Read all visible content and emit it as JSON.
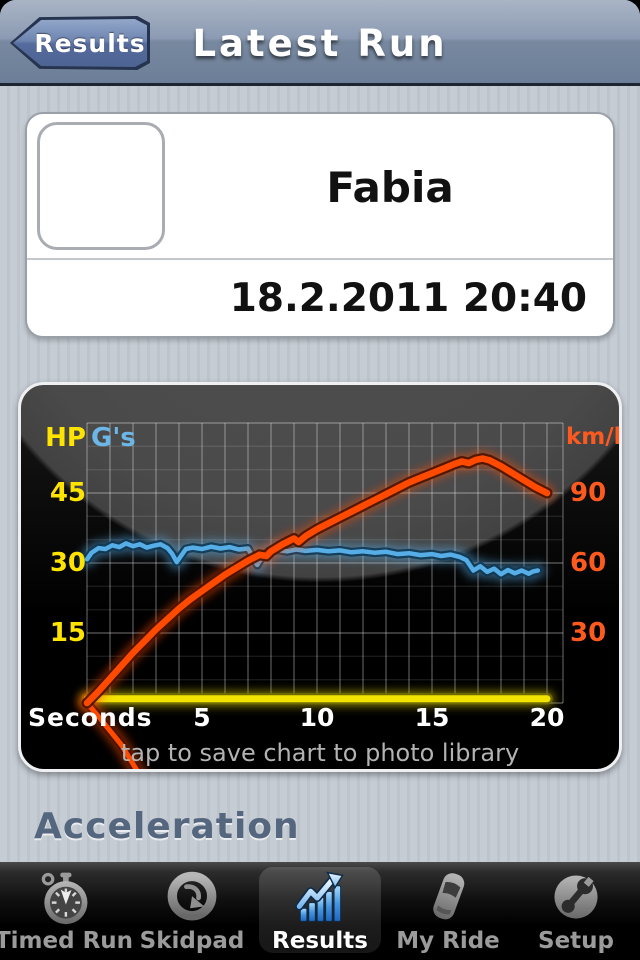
{
  "nav": {
    "back_label": "Results",
    "title": "Latest Run"
  },
  "run_card": {
    "vehicle_name": "Fabia",
    "datetime": "18.2.2011 20:40"
  },
  "section_title": "Acceleration",
  "chart": {
    "tap_hint": "tap to save chart to photo library",
    "axes": {
      "left_label": "HP",
      "left2_label": "G's",
      "right_label": "km/h",
      "x_label": "Seconds",
      "left_ticks": [
        "45",
        "30",
        "15"
      ],
      "right_ticks": [
        "90",
        "60",
        "30"
      ],
      "x_ticks": [
        "5",
        "10",
        "15",
        "20"
      ]
    },
    "colors": {
      "hp": "#f2e400",
      "hp_edge": "#6f6a00",
      "gs": "#57aee6",
      "gs_edge": "#0f3854",
      "kmh": "#ff4a00",
      "kmh_edge": "#4d1300",
      "grid": "#ffffff"
    }
  },
  "chart_data": {
    "type": "line",
    "x_axis": {
      "label": "Seconds",
      "range": [
        0,
        20
      ],
      "gridline_step": 1,
      "tick_step": 5
    },
    "y_left": {
      "label": "HP",
      "range": [
        0,
        60
      ],
      "ticks": [
        15,
        30,
        45
      ]
    },
    "y_right": {
      "label": "km/h",
      "range": [
        0,
        120
      ],
      "ticks": [
        30,
        60,
        90
      ]
    },
    "legend": "axis-corner labels (HP yellow, G's blue, km/h orange)",
    "series": [
      {
        "name": "G's",
        "axis": "left",
        "color": "#57aee6",
        "edge": "#0f3854",
        "core_width": 4.5,
        "x": [
          0,
          0.2,
          0.5,
          0.8,
          1.1,
          1.4,
          1.7,
          2.0,
          2.3,
          2.6,
          2.9,
          3.2,
          3.5,
          3.7,
          3.9,
          4.1,
          4.3,
          4.6,
          5.0,
          5.4,
          5.8,
          6.2,
          6.6,
          7.0,
          7.2,
          7.4,
          7.6,
          7.9,
          8.3,
          8.7,
          9.1,
          9.5,
          10.0,
          10.5,
          11.0,
          11.5,
          12.0,
          12.5,
          13.0,
          13.5,
          14.0,
          14.5,
          15.0,
          15.4,
          15.8,
          16.2,
          16.5,
          16.8,
          17.1,
          17.4,
          17.7,
          18.0,
          18.3,
          18.6,
          18.9,
          19.2,
          19.4,
          19.6
        ],
        "values": [
          30.8,
          32.2,
          33.2,
          33.0,
          33.8,
          33.4,
          34.2,
          33.6,
          34.0,
          33.3,
          33.7,
          34.0,
          33.2,
          32.0,
          30.2,
          31.6,
          33.0,
          33.3,
          33.0,
          33.5,
          33.1,
          33.4,
          32.9,
          33.1,
          31.4,
          29.6,
          31.2,
          32.5,
          32.8,
          32.5,
          32.9,
          32.6,
          32.8,
          32.5,
          32.7,
          32.3,
          32.5,
          32.2,
          32.4,
          31.9,
          32.1,
          31.7,
          31.9,
          31.5,
          31.8,
          31.3,
          30.6,
          28.4,
          29.3,
          28.1,
          28.8,
          27.6,
          28.5,
          27.8,
          28.4,
          27.7,
          28.2,
          28.4
        ]
      },
      {
        "name": "HP",
        "axis": "left",
        "color": "#f2e400",
        "edge": "#6f6a00",
        "core_width": 7,
        "x": [
          0,
          20
        ],
        "values": [
          0.9,
          0.9
        ]
      },
      {
        "name": "km/h (pre-start)",
        "axis": "right",
        "color": "#ff4a00",
        "edge": "#4d1300",
        "core_width": 5,
        "x": [
          0,
          0.6,
          1.5,
          2.3
        ],
        "values": [
          0,
          -7,
          -18,
          -31
        ]
      },
      {
        "name": "km/h",
        "axis": "right",
        "color": "#ff4a00",
        "edge": "#4d1300",
        "core_width": 6.5,
        "x": [
          0,
          0.5,
          1,
          1.5,
          2,
          2.5,
          3,
          3.5,
          4,
          4.5,
          5,
          5.5,
          6,
          6.5,
          7,
          7.5,
          7.8,
          8,
          8.5,
          9,
          9.2,
          9.5,
          10,
          10.5,
          11,
          11.5,
          12,
          12.5,
          13,
          13.5,
          14,
          14.5,
          15,
          15.5,
          16,
          16.3,
          16.6,
          16.9,
          17.2,
          17.5,
          18,
          18.5,
          19,
          19.5,
          20
        ],
        "values": [
          0,
          5,
          10.5,
          16,
          21.5,
          26.5,
          31.5,
          36,
          40.5,
          44.5,
          48,
          51.5,
          55,
          58,
          61,
          63.5,
          63,
          65,
          68,
          70.5,
          69,
          71.5,
          74.5,
          77,
          79.5,
          82,
          84.5,
          87,
          89.5,
          92,
          94.5,
          96.5,
          98.5,
          100.5,
          102.5,
          103.5,
          102.8,
          104.2,
          104.8,
          104,
          101.5,
          98.5,
          95.5,
          92.5,
          90
        ]
      }
    ]
  },
  "tabbar": {
    "items": [
      {
        "label": "Timed Run",
        "icon": "stopwatch-icon",
        "selected": false
      },
      {
        "label": "Skidpad",
        "icon": "skidpad-icon",
        "selected": false
      },
      {
        "label": "Results",
        "icon": "results-chart-icon",
        "selected": true
      },
      {
        "label": "My Ride",
        "icon": "car-icon",
        "selected": false
      },
      {
        "label": "Setup",
        "icon": "wrench-icon",
        "selected": false
      }
    ]
  }
}
